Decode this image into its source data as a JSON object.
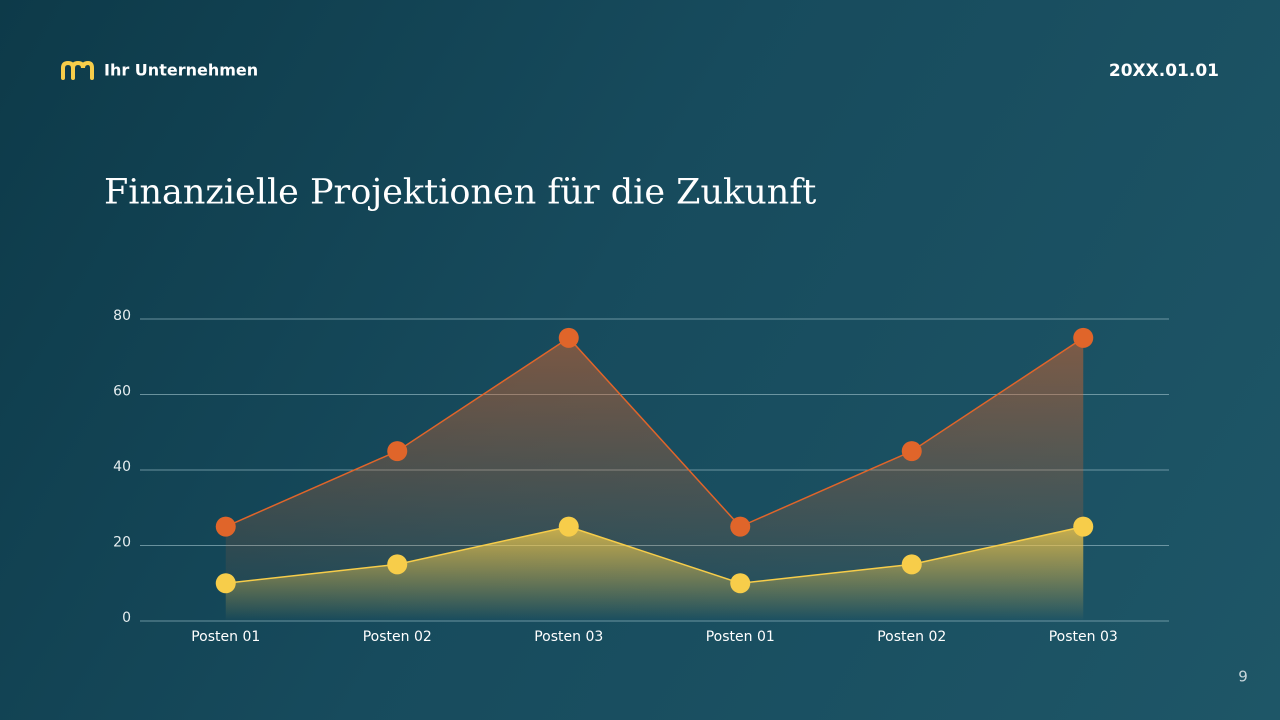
{
  "header": {
    "company": "Ihr Unternehmen",
    "date": "20XX.01.01"
  },
  "chart_data": {
    "type": "area",
    "title": "Finanzielle Projektionen für die Zukunft",
    "categories": [
      "Posten 01",
      "Posten 02",
      "Posten 03",
      "Posten 01",
      "Posten 02",
      "Posten 03"
    ],
    "series": [
      {
        "color": "#e0652a",
        "values": [
          25,
          45,
          75,
          25,
          45,
          75
        ]
      },
      {
        "color": "#f7cd4a",
        "values": [
          10,
          15,
          25,
          10,
          15,
          25
        ]
      }
    ],
    "ylim": [
      0,
      80
    ],
    "yticks": [
      0,
      20,
      40,
      60,
      80
    ],
    "grid": true
  },
  "footer": {
    "page_number": "9"
  }
}
